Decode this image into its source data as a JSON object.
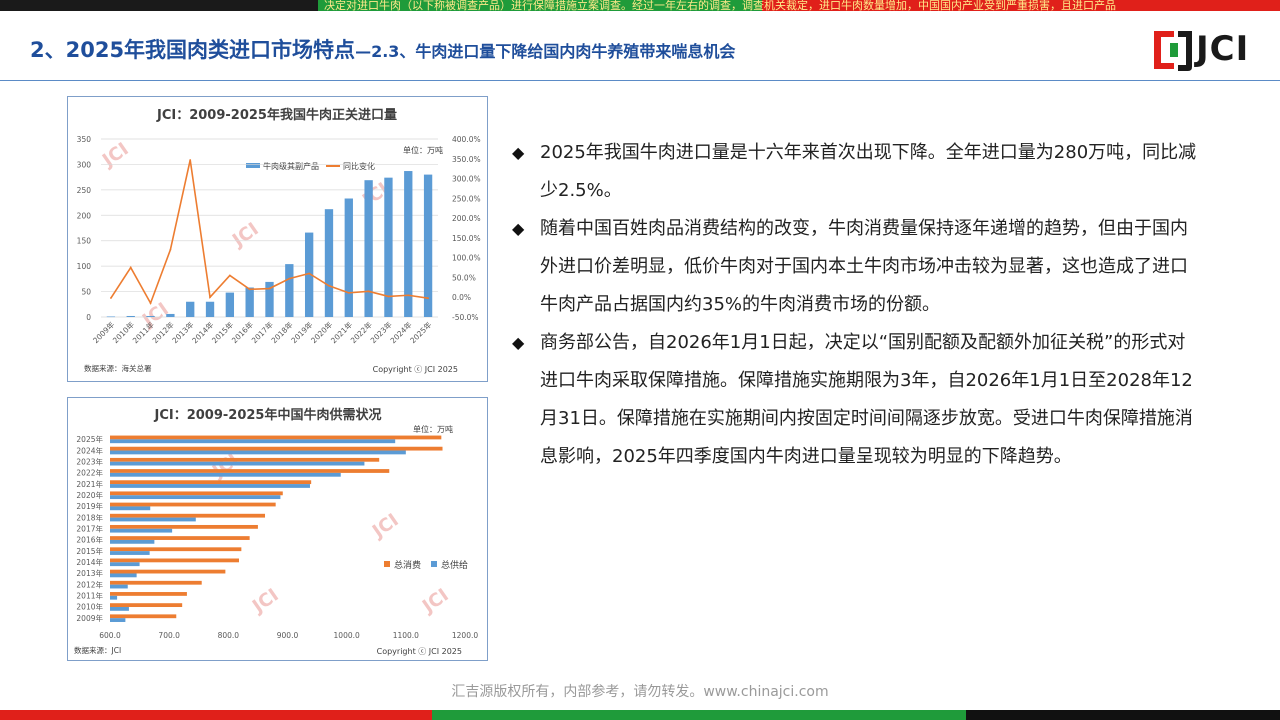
{
  "top_ticker": "决定对进口牛肉（以下称被调查产品）进行保障措施立案调查。经过一年左右的调查，调查机关裁定，进口牛肉数量增加，中国国内产业受到严重损害，且进口产品",
  "header": {
    "title_main": "2、2025年我国肉类进口市场特点",
    "title_sub": "—2.3、牛肉进口量下降给国内肉牛养殖带来喘息机会",
    "logo_text": "JCI"
  },
  "bullets": [
    {
      "marker": "◆",
      "text": "2025年我国牛肉进口量是十六年来首次出现下降。全年进口量为280万吨，同比减少2.5%。"
    },
    {
      "marker": "◆",
      "text": "随着中国百姓肉品消费结构的改变，牛肉消费量保持逐年递增的趋势，但由于国内外进口价差明显，低价牛肉对于国内本土牛肉市场冲击较为显著，这也造成了进口牛肉产品占据国内约35%的牛肉消费市场的份额。"
    },
    {
      "marker": "◆",
      "text": "商务部公告，自2026年1月1日起，决定以“国别配额及配额外加征关税”的形式对进口牛肉采取保障措施。保障措施实施期限为3年，自2026年1月1日至2028年12月31日。保障措施在实施期间内按固定时间间隔逐步放宽。受进口牛肉保障措施消息影响，2025年四季度国内牛肉进口量呈现较为明显的下降趋势。"
    }
  ],
  "footer": "汇吉源版权所有，内部参考，请勿转发。www.chinajci.com",
  "colors": {
    "blue": "#5b9bd5",
    "orange": "#ed7d31",
    "title_blue": "#1f4e9b",
    "red": "#e0201a",
    "green": "#1f9b3a"
  },
  "chart_data": [
    {
      "type": "bar",
      "title": "JCI：2009-2025年我国牛肉正关进口量",
      "unit": "单位：万吨",
      "categories": [
        "2009年",
        "2010年",
        "2011年",
        "2012年",
        "2013年",
        "2014年",
        "2015年",
        "2016年",
        "2017年",
        "2018年",
        "2019年",
        "2020年",
        "2021年",
        "2022年",
        "2023年",
        "2024年",
        "2025年"
      ],
      "series": [
        {
          "name": "牛肉级其副产品",
          "kind": "bar",
          "axis": "left",
          "values": [
            1,
            2,
            2,
            6,
            30,
            30,
            48,
            58,
            69,
            104,
            166,
            212,
            233,
            269,
            274,
            287,
            280
          ]
        },
        {
          "name": "同比变化",
          "kind": "line",
          "axis": "right",
          "values": [
            -2,
            75,
            -15,
            120,
            347,
            0,
            55,
            20,
            22,
            47,
            60,
            29,
            11,
            15,
            2,
            5,
            -2.5
          ]
        }
      ],
      "ylim": [
        0,
        350
      ],
      "yticks": [
        "0",
        "50",
        "100",
        "150",
        "200",
        "250",
        "300",
        "350"
      ],
      "y2lim": [
        -50,
        400
      ],
      "y2ticks": [
        "-50.0%",
        "0.0%",
        "50.0%",
        "100.0%",
        "150.0%",
        "200.0%",
        "250.0%",
        "300.0%",
        "350.0%",
        "400.0%"
      ],
      "source": "数据来源：海关总署",
      "copyright": "Copyright ⓒ JCI 2025",
      "legend": "top-right"
    },
    {
      "type": "bar",
      "orientation": "horizontal",
      "title": "JCI：2009-2025年中国牛肉供需状况",
      "unit": "单位：万吨",
      "categories": [
        "2025年",
        "2024年",
        "2023年",
        "2022年",
        "2021年",
        "2020年",
        "2019年",
        "2018年",
        "2017年",
        "2016年",
        "2015年",
        "2014年",
        "2013年",
        "2012年",
        "2011年",
        "2010年",
        "2009年"
      ],
      "series": [
        {
          "name": "总消费",
          "values": [
            1160,
            1162,
            1055,
            1072,
            940,
            892,
            880,
            862,
            850,
            836,
            822,
            818,
            795,
            755,
            730,
            722,
            712
          ]
        },
        {
          "name": "总供给",
          "values": [
            1082,
            1100,
            1030,
            990,
            938,
            888,
            668,
            745,
            705,
            675,
            667,
            650,
            645,
            630,
            612,
            632,
            626
          ]
        }
      ],
      "xlim": [
        600,
        1200
      ],
      "xticks": [
        "600.0",
        "700.0",
        "800.0",
        "900.0",
        "1000.0",
        "1100.0",
        "1200.0"
      ],
      "source": "数据来源：JCI",
      "copyright": "Copyright ⓒ JCI 2025",
      "legend": "bottom-right"
    }
  ]
}
